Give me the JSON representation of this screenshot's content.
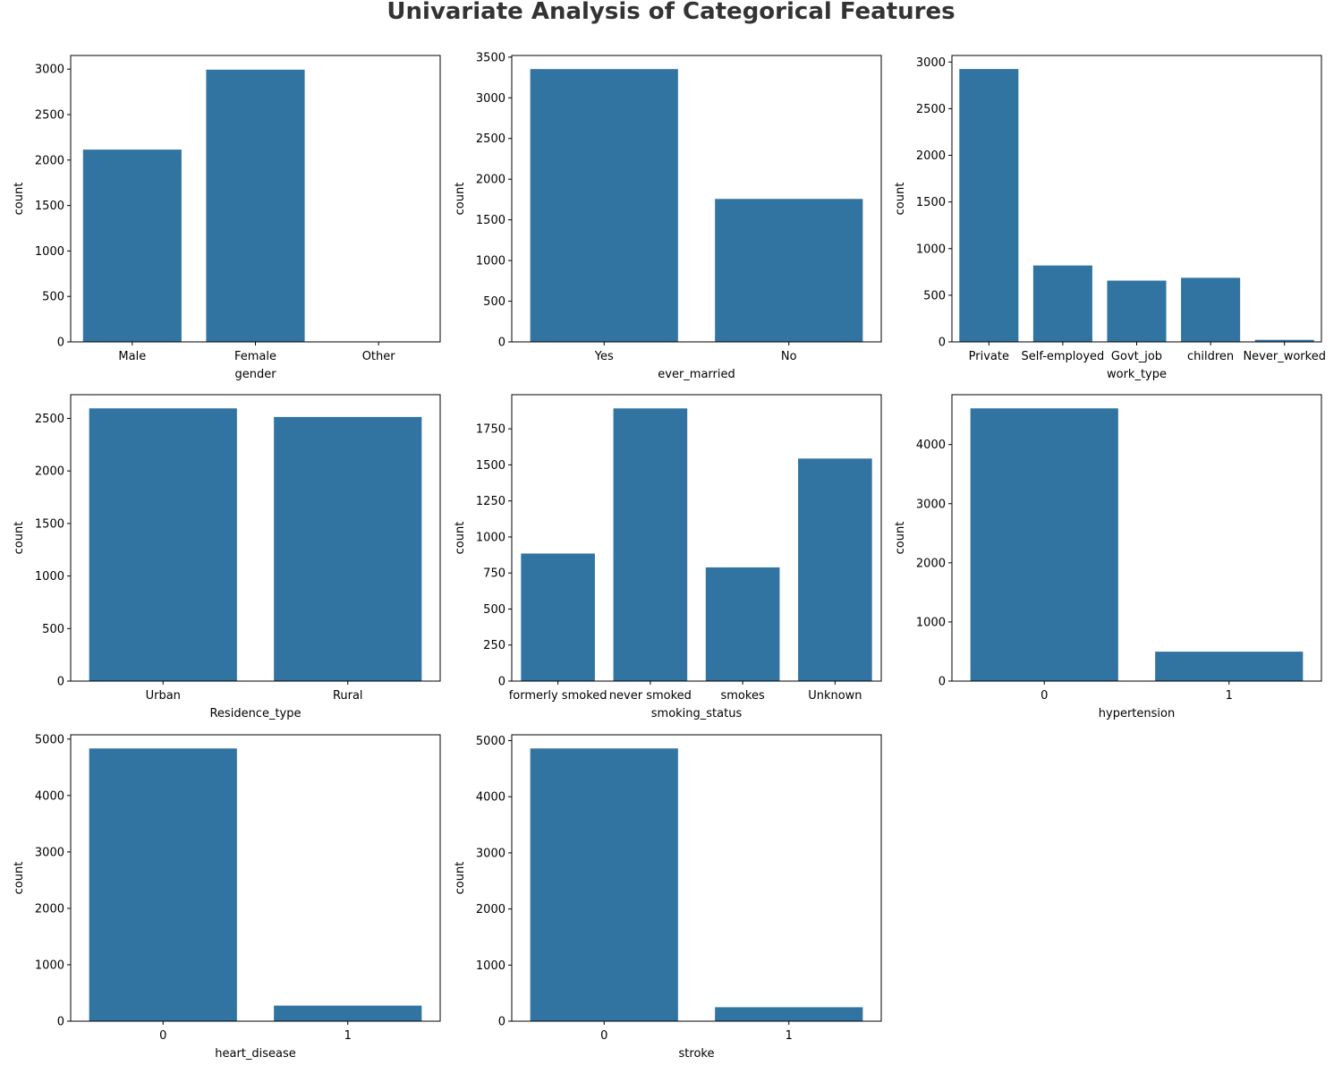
{
  "figure": {
    "title": "Univariate Analysis of Categorical Features",
    "bar_color": "#3274a1"
  },
  "chart_data": [
    {
      "type": "bar",
      "xlabel": "gender",
      "ylabel": "count",
      "categories": [
        "Male",
        "Female",
        "Other"
      ],
      "values": [
        2115,
        2994,
        1
      ],
      "ylim": [
        0,
        3150
      ],
      "yticks": [
        0,
        500,
        1000,
        1500,
        2000,
        2500,
        3000
      ],
      "grid": false
    },
    {
      "type": "bar",
      "xlabel": "ever_married",
      "ylabel": "count",
      "categories": [
        "Yes",
        "No"
      ],
      "values": [
        3353,
        1757
      ],
      "ylim": [
        0,
        3520
      ],
      "yticks": [
        0,
        500,
        1000,
        1500,
        2000,
        2500,
        3000,
        3500
      ],
      "grid": false
    },
    {
      "type": "bar",
      "xlabel": "work_type",
      "ylabel": "count",
      "categories": [
        "Private",
        "Self-employed",
        "Govt_job",
        "children",
        "Never_worked"
      ],
      "values": [
        2925,
        819,
        657,
        687,
        22
      ],
      "ylim": [
        0,
        3070
      ],
      "yticks": [
        0,
        500,
        1000,
        1500,
        2000,
        2500,
        3000
      ],
      "grid": false
    },
    {
      "type": "bar",
      "xlabel": "Residence_type",
      "ylabel": "count",
      "categories": [
        "Urban",
        "Rural"
      ],
      "values": [
        2596,
        2514
      ],
      "ylim": [
        0,
        2726
      ],
      "yticks": [
        0,
        500,
        1000,
        1500,
        2000,
        2500
      ],
      "grid": false
    },
    {
      "type": "bar",
      "xlabel": "smoking_status",
      "ylabel": "count",
      "categories": [
        "formerly smoked",
        "never smoked",
        "smokes",
        "Unknown"
      ],
      "values": [
        885,
        1892,
        789,
        1544
      ],
      "ylim": [
        0,
        1987
      ],
      "yticks": [
        0,
        250,
        500,
        750,
        1000,
        1250,
        1500,
        1750
      ],
      "grid": false
    },
    {
      "type": "bar",
      "xlabel": "hypertension",
      "ylabel": "count",
      "categories": [
        "0",
        "1"
      ],
      "values": [
        4612,
        498
      ],
      "ylim": [
        0,
        4843
      ],
      "yticks": [
        0,
        1000,
        2000,
        3000,
        4000
      ],
      "grid": false
    },
    {
      "type": "bar",
      "xlabel": "heart_disease",
      "ylabel": "count",
      "categories": [
        "0",
        "1"
      ],
      "values": [
        4834,
        276
      ],
      "ylim": [
        0,
        5076
      ],
      "yticks": [
        0,
        1000,
        2000,
        3000,
        4000,
        5000
      ],
      "grid": false
    },
    {
      "type": "bar",
      "xlabel": "stroke",
      "ylabel": "count",
      "categories": [
        "0",
        "1"
      ],
      "values": [
        4861,
        249
      ],
      "ylim": [
        0,
        5104
      ],
      "yticks": [
        0,
        1000,
        2000,
        3000,
        4000,
        5000
      ],
      "grid": false
    }
  ]
}
